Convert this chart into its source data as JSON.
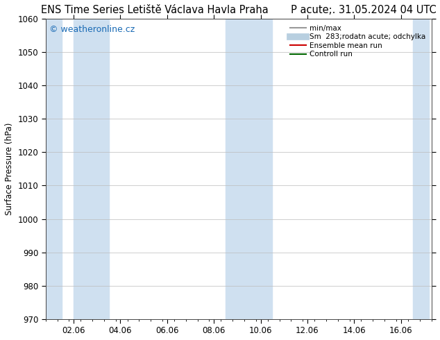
{
  "title": "ENS Time Series Letiště Václava Havla Praha       P acute;. 31.05.2024 04 UTC",
  "ylabel": "Surface Pressure (hPa)",
  "ylim": [
    970,
    1060
  ],
  "yticks": [
    970,
    980,
    990,
    1000,
    1010,
    1020,
    1030,
    1040,
    1050,
    1060
  ],
  "x_tick_labels": [
    "02.06",
    "04.06",
    "06.06",
    "08.06",
    "10.06",
    "12.06",
    "14.06",
    "16.06"
  ],
  "x_tick_positions": [
    1.0,
    3.0,
    5.0,
    7.0,
    9.0,
    11.0,
    13.0,
    15.0
  ],
  "xlim": [
    -0.2,
    16.2
  ],
  "shaded_bands": [
    {
      "x_start": -0.2,
      "x_end": 0.5
    },
    {
      "x_start": 1.0,
      "x_end": 2.5
    },
    {
      "x_start": 7.5,
      "x_end": 9.5
    },
    {
      "x_start": 15.5,
      "x_end": 16.2
    }
  ],
  "shade_color": "#cfe0f0",
  "watermark_text": "© weatheronline.cz",
  "watermark_color": "#1a6bb5",
  "legend_items": [
    {
      "label": "min/max",
      "color": "#999999",
      "lw": 1.5,
      "style": "solid"
    },
    {
      "label": "Sm  283;rodatn acute; odchylka",
      "color": "#b8cfe0",
      "lw": 7.0,
      "style": "solid"
    },
    {
      "label": "Ensemble mean run",
      "color": "#cc0000",
      "lw": 1.5,
      "style": "solid"
    },
    {
      "label": "Controll run",
      "color": "#006600",
      "lw": 1.5,
      "style": "solid"
    }
  ],
  "bg_color": "#ffffff",
  "plot_bg_color": "#ffffff",
  "grid_color": "#bbbbbb",
  "tick_label_fontsize": 8.5,
  "title_fontsize": 10.5,
  "ylabel_fontsize": 8.5,
  "watermark_fontsize": 9
}
